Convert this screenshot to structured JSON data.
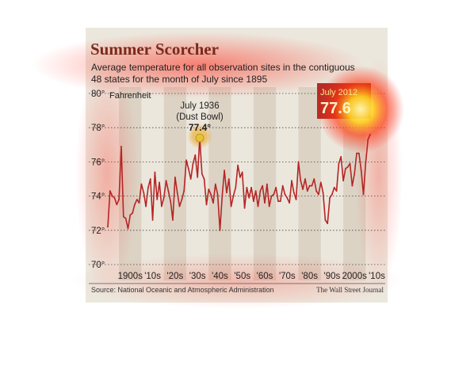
{
  "chart_data": {
    "type": "line",
    "title": "Summer Scorcher",
    "subtitle_line1": "Average temperature for all observation sites in the contiguous",
    "subtitle_line2": "48 states for the month of July since 1895",
    "ylabel": "Fahrenheit",
    "ylim": [
      70,
      80
    ],
    "y_ticks": [
      70,
      72,
      74,
      76,
      78,
      80
    ],
    "y_tick_labels": [
      "70°",
      "72°",
      "74°",
      "76°",
      "78°",
      "80°"
    ],
    "x_decade_labels": [
      "1900s",
      "'10s",
      "'20s",
      "'30s",
      "'40s",
      "'50s",
      "'60s",
      "'70s",
      "'80s",
      "'90s",
      "2000s",
      "'10s"
    ],
    "grid": true,
    "source": "Source: National Oceanic and Atmospheric Administration",
    "credit": "The Wall Street Journal",
    "annotation_1936": {
      "line1": "July 1936",
      "line2": "(Dust Bowl)",
      "value": "77.4°",
      "x": 1936,
      "y": 77.4
    },
    "annotation_2012": {
      "label": "July 2012",
      "value": "77.6",
      "x": 2012,
      "y": 77.6
    },
    "colors": {
      "background": "#ece7dd",
      "band": "#dcd3c5",
      "line": "#b52525",
      "title": "#7a2a1c",
      "text": "#222222",
      "marker_1936": "#e6c23a",
      "heat": "#ff2a1a",
      "heat_core": "#fff3a0"
    },
    "x": [
      1895,
      1896,
      1897,
      1898,
      1899,
      1900,
      1901,
      1902,
      1903,
      1904,
      1905,
      1906,
      1907,
      1908,
      1909,
      1910,
      1911,
      1912,
      1913,
      1914,
      1915,
      1916,
      1917,
      1918,
      1919,
      1920,
      1921,
      1922,
      1923,
      1924,
      1925,
      1926,
      1927,
      1928,
      1929,
      1930,
      1931,
      1932,
      1933,
      1934,
      1935,
      1936,
      1937,
      1938,
      1939,
      1940,
      1941,
      1942,
      1943,
      1944,
      1945,
      1946,
      1947,
      1948,
      1949,
      1950,
      1951,
      1952,
      1953,
      1954,
      1955,
      1956,
      1957,
      1958,
      1959,
      1960,
      1961,
      1962,
      1963,
      1964,
      1965,
      1966,
      1967,
      1968,
      1969,
      1970,
      1971,
      1972,
      1973,
      1974,
      1975,
      1976,
      1977,
      1978,
      1979,
      1980,
      1981,
      1982,
      1983,
      1984,
      1985,
      1986,
      1987,
      1988,
      1989,
      1990,
      1991,
      1992,
      1993,
      1994,
      1995,
      1996,
      1997,
      1998,
      1999,
      2000,
      2001,
      2002,
      2003,
      2004,
      2005,
      2006,
      2007,
      2008,
      2009,
      2010,
      2011,
      2012
    ],
    "values": [
      72.2,
      74.3,
      74.0,
      73.9,
      73.5,
      73.8,
      76.9,
      72.8,
      72.7,
      72.1,
      72.9,
      73.0,
      73.5,
      73.8,
      73.6,
      74.7,
      74.2,
      73.4,
      74.5,
      75.0,
      72.6,
      75.4,
      73.8,
      74.8,
      73.4,
      73.9,
      74.9,
      74.3,
      73.7,
      72.6,
      75.1,
      74.2,
      73.4,
      73.8,
      74.3,
      76.1,
      75.6,
      75.0,
      75.9,
      76.4,
      75.1,
      77.4,
      75.3,
      75.0,
      73.5,
      74.4,
      74.1,
      73.6,
      74.7,
      74.1,
      72.0,
      74.0,
      75.5,
      74.2,
      75.0,
      73.4,
      74.0,
      74.5,
      75.8,
      75.1,
      75.4,
      73.3,
      74.5,
      73.9,
      74.5,
      73.7,
      74.3,
      73.4,
      74.3,
      74.6,
      73.6,
      74.7,
      73.4,
      74.0,
      74.1,
      74.5,
      73.7,
      73.7,
      74.6,
      74.1,
      73.9,
      73.6,
      74.9,
      74.2,
      73.8,
      76.0,
      74.9,
      74.4,
      75.0,
      74.3,
      74.6,
      74.6,
      75.0,
      74.3,
      74.1,
      74.8,
      74.2,
      72.6,
      72.4,
      73.9,
      74.1,
      74.5,
      74.3,
      75.9,
      76.3,
      74.9,
      75.6,
      75.7,
      75.9,
      74.6,
      75.3,
      76.5,
      76.5,
      75.5,
      74.1,
      75.9,
      77.3,
      77.6
    ]
  }
}
